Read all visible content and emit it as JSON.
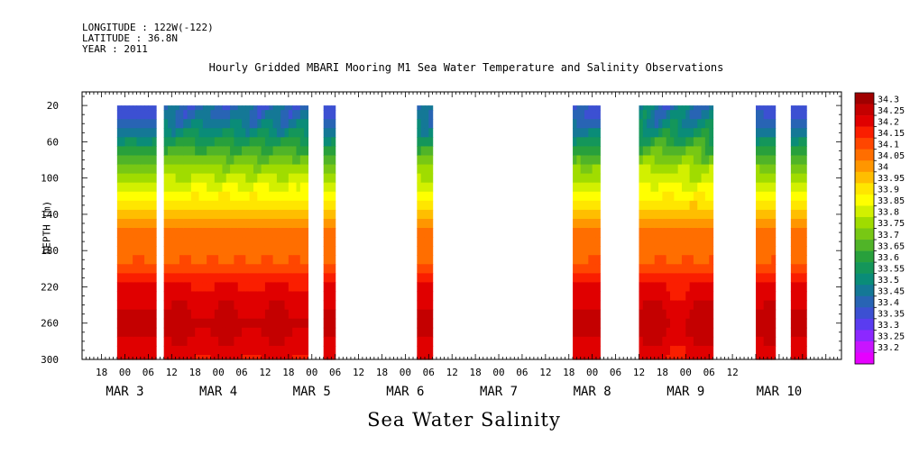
{
  "header": {
    "longitude": "LONGITUDE : 122W(-122)",
    "latitude": "LATITUDE : 36.8N",
    "year": "YEAR : 2011"
  },
  "chart_data": {
    "type": "heatmap",
    "title": "Hourly Gridded MBARI Mooring M1 Sea Water Temperature and Salinity Observations",
    "xlabel": "",
    "ylabel": "DEPTH (m)",
    "variable_label": "Sea Water Salinity",
    "x_hour_ticks": [
      "18",
      "00",
      "06",
      "12",
      "18",
      "00",
      "06",
      "12",
      "18",
      "00",
      "06",
      "12",
      "18",
      "00",
      "06",
      "12",
      "18",
      "00",
      "06",
      "12",
      "18",
      "00",
      "06",
      "12",
      "18",
      "00",
      "06",
      "12"
    ],
    "x_date_labels": [
      {
        "label": "MAR  3",
        "day": 3
      },
      {
        "label": "MAR  4",
        "day": 4
      },
      {
        "label": "MAR  5",
        "day": 5
      },
      {
        "label": "MAR  6",
        "day": 6
      },
      {
        "label": "MAR  7",
        "day": 7
      },
      {
        "label": "MAR  8",
        "day": 8
      },
      {
        "label": "MAR  9",
        "day": 9
      },
      {
        "label": "MAR 10",
        "day": 10
      }
    ],
    "xlim": [
      "2011-03-02 13:00",
      "2011-03-10 16:00"
    ],
    "y_ticks": [
      20,
      60,
      100,
      140,
      180,
      220,
      260,
      300
    ],
    "ylim": [
      300,
      5
    ],
    "colorbar": {
      "levels": [
        34.3,
        34.25,
        34.2,
        34.15,
        34.1,
        34.05,
        34,
        33.95,
        33.9,
        33.85,
        33.8,
        33.75,
        33.7,
        33.65,
        33.6,
        33.55,
        33.5,
        33.45,
        33.4,
        33.35,
        33.3,
        33.25,
        33.2
      ],
      "level_labels": [
        "34.3",
        "34.25",
        "34.2",
        "34.15",
        "34.1",
        "34.05",
        "34",
        "33.95",
        "33.9",
        "33.85",
        "33.8",
        "33.75",
        "33.7",
        "33.65",
        "33.6",
        "33.55",
        "33.5",
        "33.45",
        "33.4",
        "33.35",
        "33.3",
        "33.25",
        "33.2"
      ],
      "colors": [
        "#a00000",
        "#c40000",
        "#e00000",
        "#fa1e00",
        "#ff4600",
        "#ff6e00",
        "#ff9600",
        "#ffbe00",
        "#ffe600",
        "#ffff00",
        "#d2f000",
        "#a0dc00",
        "#78c814",
        "#50b428",
        "#28a03c",
        "#14965a",
        "#0a8c78",
        "#147896",
        "#2864b4",
        "#3c50d2",
        "#5a3cf0",
        "#8c28ff",
        "#c814ff",
        "#e600ff"
      ]
    },
    "depth_levels_m": [
      20,
      30,
      40,
      50,
      60,
      70,
      80,
      90,
      100,
      110,
      120,
      130,
      140,
      150,
      160,
      170,
      180,
      190,
      200,
      210,
      220,
      230,
      240,
      250,
      260,
      270,
      280,
      290,
      300
    ],
    "salinity_profile_psu": [
      33.36,
      33.38,
      33.42,
      33.48,
      33.55,
      33.62,
      33.68,
      33.74,
      33.78,
      33.83,
      33.88,
      33.93,
      33.98,
      34.03,
      34.06,
      34.07,
      34.08,
      34.1,
      34.13,
      34.16,
      34.2,
      34.22,
      34.24,
      34.25,
      34.27,
      34.26,
      34.24,
      34.22,
      34.21
    ],
    "data_segments": [
      {
        "start": "2011-03-02 22:00",
        "end": "2011-03-03 07:00",
        "surface_offset": 0.0,
        "deep_offset": 0.0
      },
      {
        "start": "2011-03-03 10:00",
        "end": "2011-03-04 22:00",
        "surface_offset": 0.12,
        "deep_offset": 0.02
      },
      {
        "start": "2011-03-05 03:00",
        "end": "2011-03-05 05:00",
        "surface_offset": 0.0,
        "deep_offset": 0.01
      },
      {
        "start": "2011-03-06 03:00",
        "end": "2011-03-06 06:00",
        "surface_offset": 0.1,
        "deep_offset": 0.0
      },
      {
        "start": "2011-03-07 19:00",
        "end": "2011-03-08 01:00",
        "surface_offset": 0.04,
        "deep_offset": 0.01
      },
      {
        "start": "2011-03-08 12:00",
        "end": "2011-03-09 06:00",
        "surface_offset": 0.18,
        "deep_offset": 0.03
      },
      {
        "start": "2011-03-09 18:00",
        "end": "2011-03-09 22:00",
        "surface_offset": 0.02,
        "deep_offset": 0.02
      },
      {
        "start": "2011-03-10 03:00",
        "end": "2011-03-10 06:00",
        "surface_offset": 0.0,
        "deep_offset": 0.01
      }
    ]
  }
}
